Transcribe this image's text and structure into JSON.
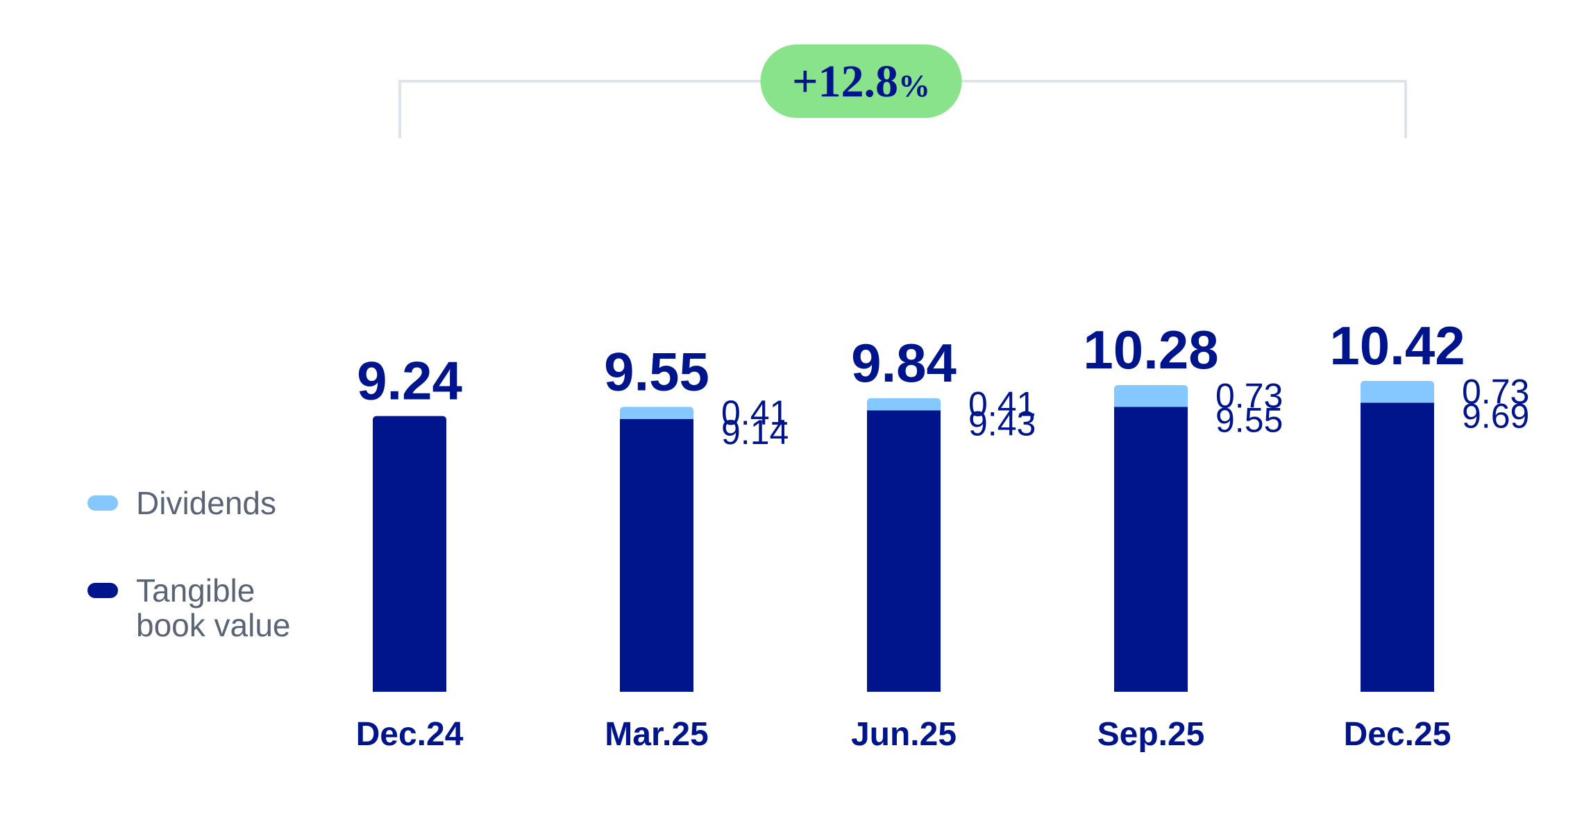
{
  "chart_data": {
    "type": "bar",
    "stacked": true,
    "categories": [
      "Dec.24",
      "Mar.25",
      "Jun.25",
      "Sep.25",
      "Dec.25"
    ],
    "series": [
      {
        "name": "Tangible book value",
        "color": "#00148c",
        "values": [
          9.24,
          9.14,
          9.43,
          9.55,
          9.69
        ],
        "labels": [
          "",
          "9.14",
          "9.43",
          "9.55",
          "9.69"
        ]
      },
      {
        "name": "Dividends",
        "color": "#85c8ff",
        "values": [
          0,
          0.41,
          0.41,
          0.73,
          0.73
        ],
        "labels": [
          "",
          "0.41",
          "0.41",
          "0.73",
          "0.73"
        ]
      }
    ],
    "totals": [
      9.24,
      9.55,
      9.84,
      10.28,
      10.42
    ],
    "total_labels": [
      "9.24",
      "9.55",
      "9.84",
      "10.28",
      "10.42"
    ],
    "annotation": {
      "text": "+12.8",
      "suffix": "%",
      "from": "Dec.24",
      "to": "Dec.25",
      "color": "#88e38a"
    },
    "legend_position": "left",
    "grid": false
  },
  "legend": {
    "dividends_label": "Dividends",
    "tbv_label_line1": "Tangible",
    "tbv_label_line2": "book value"
  }
}
